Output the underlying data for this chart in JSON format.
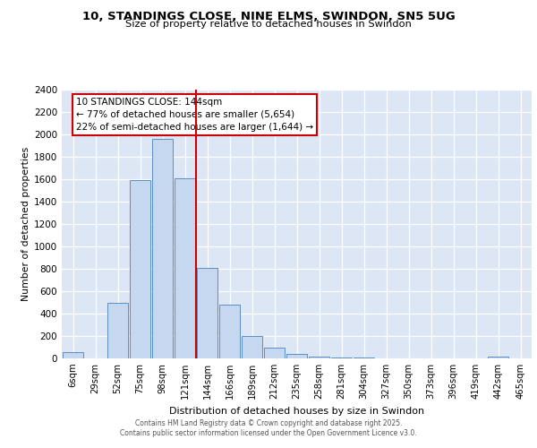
{
  "title": "10, STANDINGS CLOSE, NINE ELMS, SWINDON, SN5 5UG",
  "subtitle": "Size of property relative to detached houses in Swindon",
  "xlabel": "Distribution of detached houses by size in Swindon",
  "ylabel": "Number of detached properties",
  "categories": [
    "6sqm",
    "29sqm",
    "52sqm",
    "75sqm",
    "98sqm",
    "121sqm",
    "144sqm",
    "166sqm",
    "189sqm",
    "212sqm",
    "235sqm",
    "258sqm",
    "281sqm",
    "304sqm",
    "327sqm",
    "350sqm",
    "373sqm",
    "396sqm",
    "419sqm",
    "442sqm",
    "465sqm"
  ],
  "values": [
    55,
    0,
    500,
    1595,
    1960,
    1605,
    810,
    480,
    200,
    95,
    40,
    18,
    10,
    5,
    3,
    2,
    0,
    0,
    0,
    15,
    0
  ],
  "bar_color": "#c5d8f0",
  "bar_edge_color": "#5b8ec4",
  "bg_color": "#dce6f5",
  "grid_color": "#ffffff",
  "vline_x_idx": 6,
  "vline_color": "#cc0000",
  "annotation_text": "10 STANDINGS CLOSE: 144sqm\n← 77% of detached houses are smaller (5,654)\n22% of semi-detached houses are larger (1,644) →",
  "annotation_box_color": "#cc0000",
  "ylim": [
    0,
    2400
  ],
  "yticks": [
    0,
    200,
    400,
    600,
    800,
    1000,
    1200,
    1400,
    1600,
    1800,
    2000,
    2200,
    2400
  ],
  "footer_line1": "Contains HM Land Registry data © Crown copyright and database right 2025.",
  "footer_line2": "Contains public sector information licensed under the Open Government Licence v3.0."
}
